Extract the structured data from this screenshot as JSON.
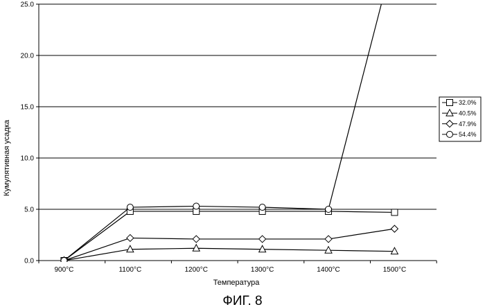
{
  "figure_caption": "ФИГ. 8",
  "chart_data": {
    "type": "line",
    "title": "",
    "xlabel": "Температура",
    "ylabel": "Кумулятивная усадка",
    "categories": [
      "900°C",
      "1100°C",
      "1200°C",
      "1300°C",
      "1400°C",
      "1500°C"
    ],
    "ylim": [
      0,
      25
    ],
    "yticks": [
      "0.0",
      "5.0",
      "10.0",
      "15.0",
      "20.0",
      "25.0"
    ],
    "grid": "horizontal",
    "legend_position": "right",
    "series": [
      {
        "name": "32.0%",
        "marker": "square",
        "values": [
          0.0,
          4.8,
          4.8,
          4.8,
          4.8,
          4.7
        ]
      },
      {
        "name": "40.5%",
        "marker": "triangle",
        "values": [
          0.0,
          1.1,
          1.2,
          1.1,
          1.0,
          0.9
        ]
      },
      {
        "name": "47.9%",
        "marker": "diamond",
        "values": [
          0.0,
          2.2,
          2.1,
          2.1,
          2.1,
          3.1
        ]
      },
      {
        "name": "54.4%",
        "marker": "circle",
        "values": [
          0.0,
          5.2,
          5.3,
          5.2,
          5.0,
          30.0
        ]
      }
    ]
  }
}
